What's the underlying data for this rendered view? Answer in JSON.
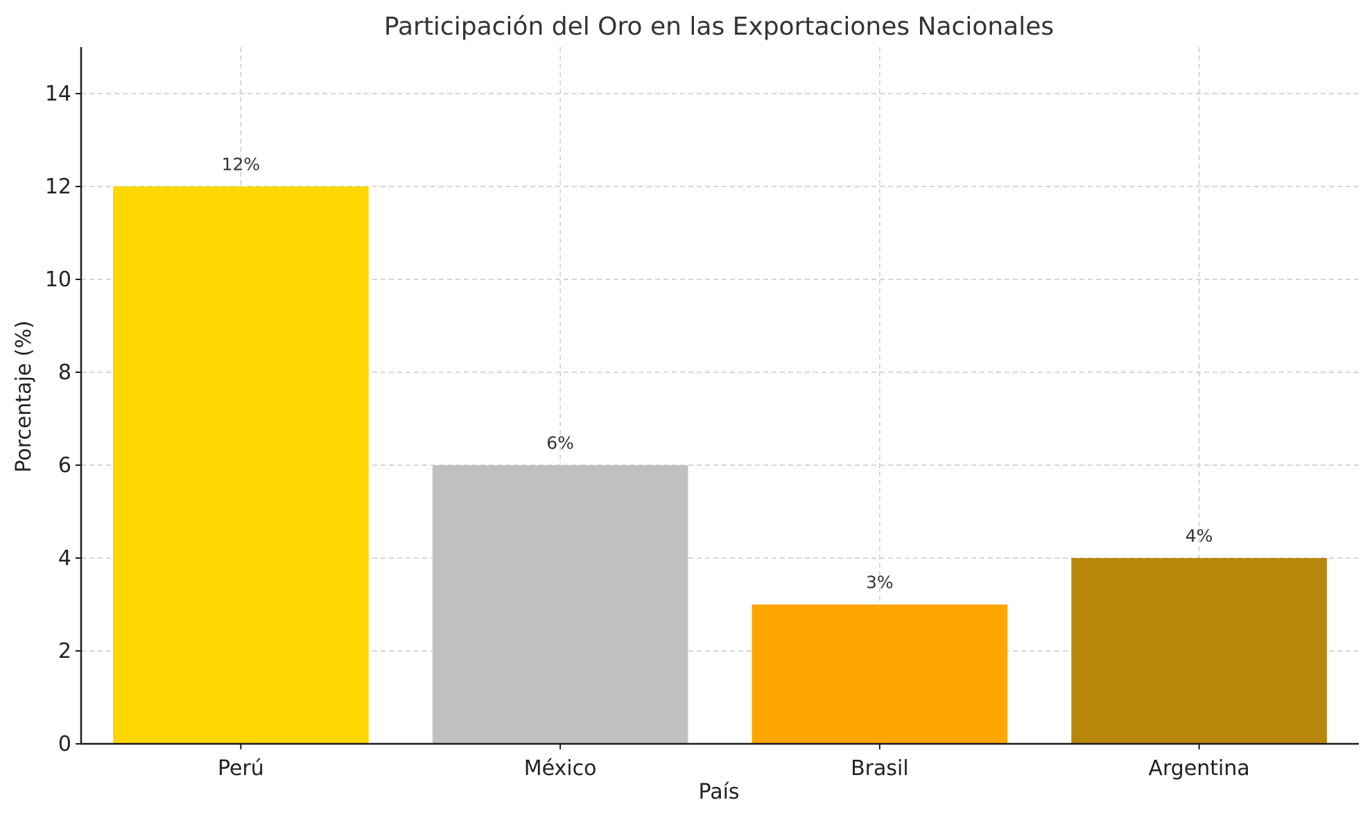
{
  "chart_data": {
    "type": "bar",
    "title": "Participación del Oro en las Exportaciones Nacionales",
    "xlabel": "País",
    "ylabel": "Porcentaje (%)",
    "categories": [
      "Perú",
      "México",
      "Brasil",
      "Argentina"
    ],
    "values": [
      12,
      6,
      3,
      4
    ],
    "data_labels": [
      "12%",
      "6%",
      "3%",
      "4%"
    ],
    "colors": [
      "#FFD700",
      "#C0C0C0",
      "#FFA500",
      "#B8860B"
    ],
    "ylim": [
      0,
      15
    ],
    "yticks": [
      0,
      2,
      4,
      6,
      8,
      10,
      12,
      14
    ],
    "grid": true,
    "legend": null
  }
}
